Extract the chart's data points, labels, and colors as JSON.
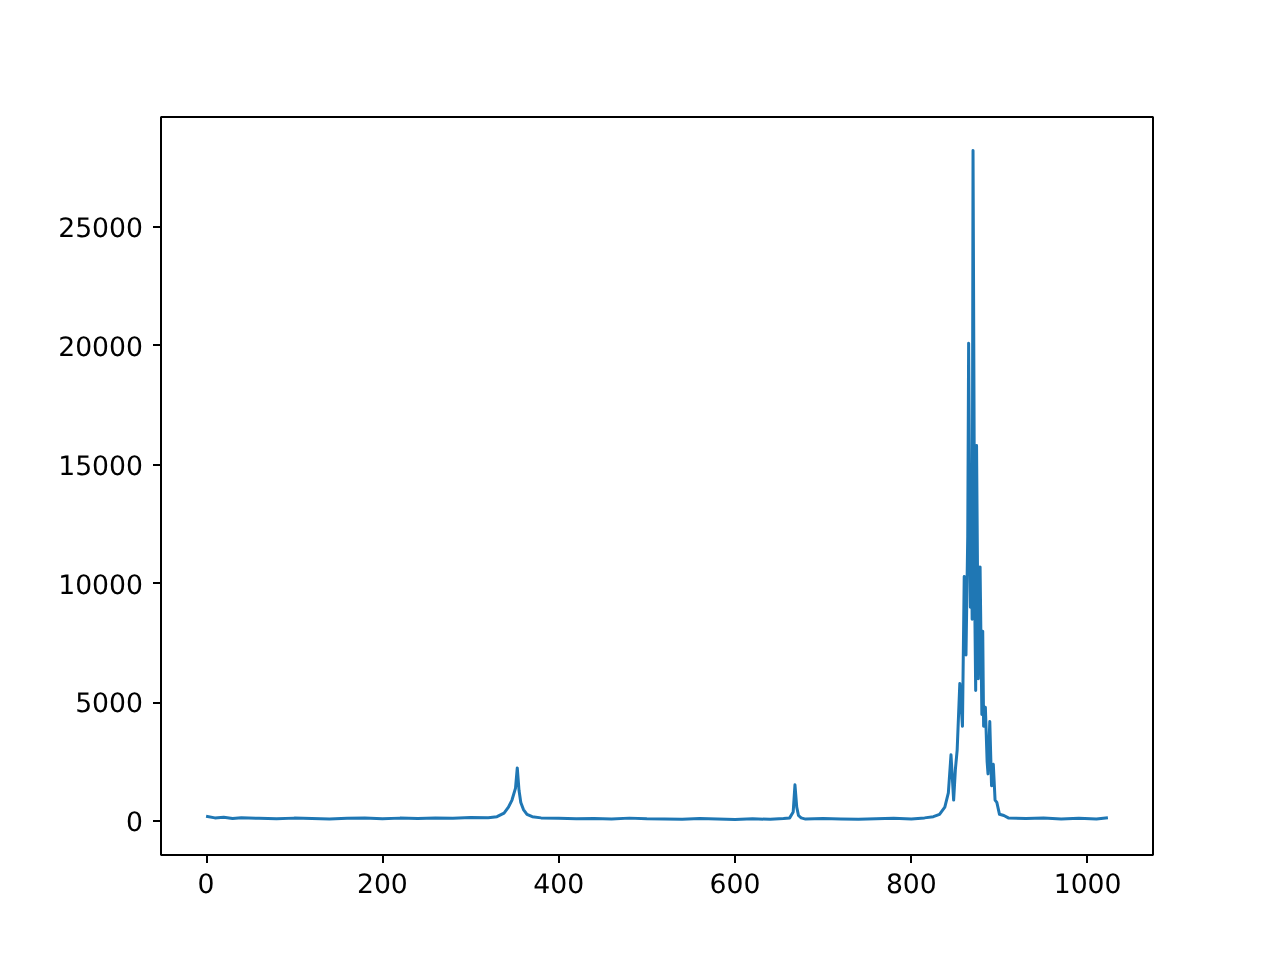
{
  "chart_data": {
    "type": "line",
    "x": [
      0,
      10,
      20,
      30,
      40,
      60,
      80,
      100,
      120,
      140,
      160,
      180,
      200,
      220,
      240,
      260,
      280,
      300,
      320,
      330,
      338,
      343,
      347,
      351,
      353,
      355,
      357,
      360,
      364,
      370,
      380,
      400,
      420,
      440,
      460,
      480,
      500,
      520,
      540,
      560,
      580,
      600,
      620,
      640,
      655,
      662,
      666,
      668,
      670,
      672,
      675,
      680,
      700,
      720,
      740,
      760,
      780,
      800,
      815,
      825,
      832,
      838,
      842,
      845,
      848,
      850,
      852,
      855,
      858,
      860,
      862,
      864,
      865,
      867,
      868,
      869,
      870,
      872,
      873,
      874,
      876,
      877,
      878,
      880,
      881,
      882,
      884,
      886,
      887,
      889,
      891,
      893,
      895,
      897,
      900,
      905,
      910,
      930,
      950,
      970,
      990,
      1010,
      1023
    ],
    "series": [
      {
        "color": "#1f77b4",
        "values": [
          220,
          150,
          180,
          120,
          160,
          130,
          110,
          140,
          120,
          100,
          130,
          150,
          110,
          140,
          120,
          150,
          130,
          170,
          160,
          200,
          350,
          600,
          900,
          1400,
          2250,
          1300,
          800,
          500,
          300,
          200,
          150,
          130,
          110,
          120,
          100,
          140,
          110,
          100,
          90,
          120,
          100,
          80,
          110,
          90,
          120,
          150,
          400,
          1540,
          600,
          250,
          150,
          100,
          120,
          100,
          90,
          110,
          130,
          100,
          150,
          200,
          300,
          600,
          1200,
          2800,
          900,
          2200,
          3000,
          5800,
          4000,
          10300,
          7000,
          12000,
          20100,
          9000,
          12500,
          8500,
          28200,
          9000,
          5500,
          15800,
          6000,
          9000,
          10700,
          4500,
          8000,
          4000,
          4800,
          2500,
          2000,
          4200,
          1500,
          2400,
          900,
          800,
          300,
          250,
          150,
          120,
          150,
          100,
          130,
          100,
          160
        ]
      }
    ],
    "xlim": [
      -51.15,
      1074.15
    ],
    "ylim": [
      -1410,
      29610
    ],
    "xticks": [
      0,
      200,
      400,
      600,
      800,
      1000
    ],
    "yticks": [
      0,
      5000,
      10000,
      15000,
      20000,
      25000
    ],
    "grid": false,
    "marker": "none",
    "line_style": "solid"
  }
}
